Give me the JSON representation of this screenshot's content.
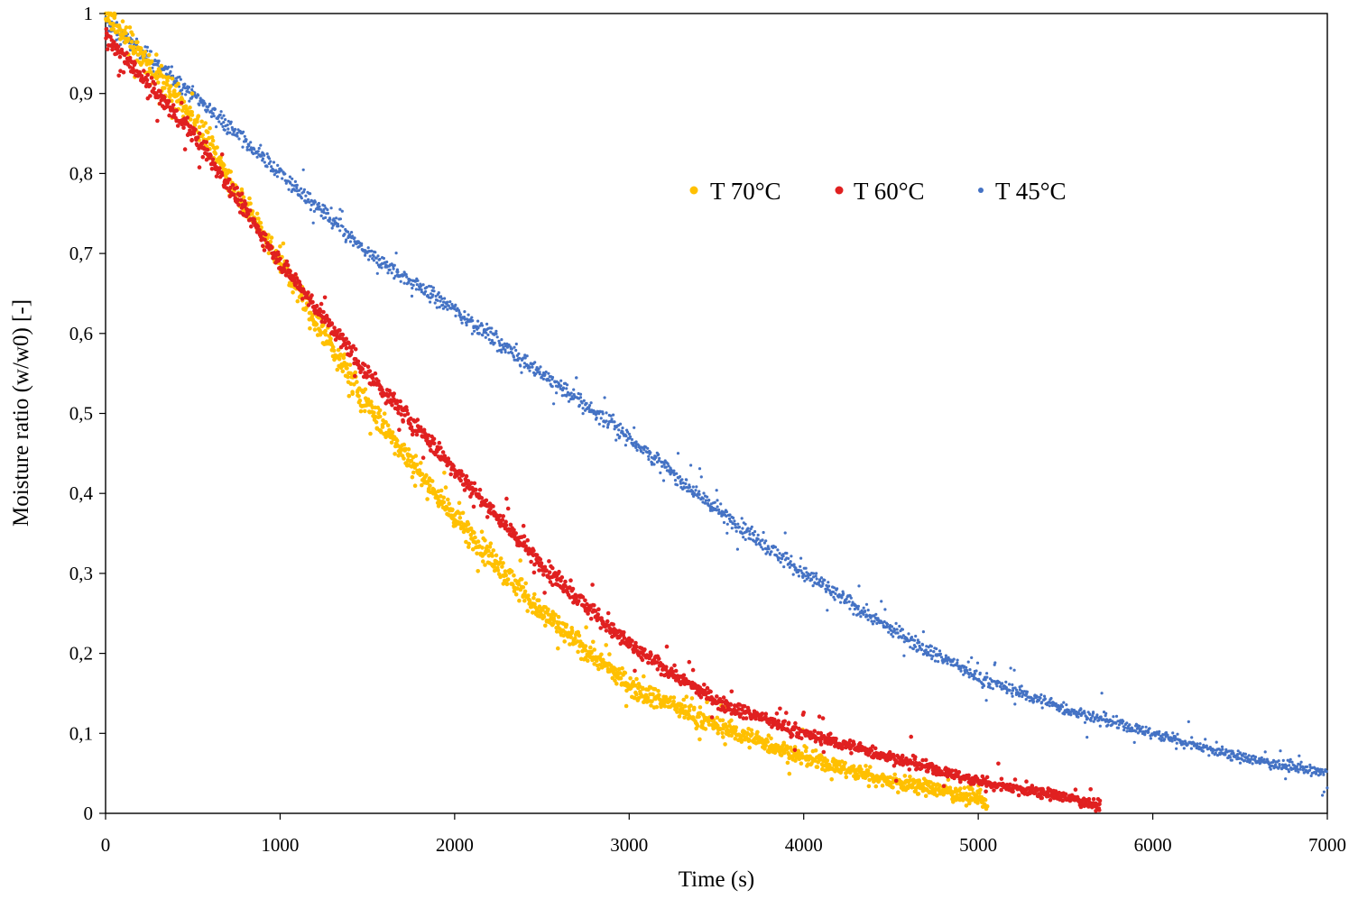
{
  "chart_data": {
    "type": "scatter",
    "title": "",
    "xlabel": "Time (s)",
    "ylabel": "Moisture ratio (w/w0) [-]",
    "xlim": [
      0,
      7000
    ],
    "ylim": [
      0,
      1
    ],
    "xticks": [
      0,
      1000,
      2000,
      3000,
      4000,
      5000,
      6000,
      7000
    ],
    "xtick_labels": [
      "0",
      "1000",
      "2000",
      "3000",
      "4000",
      "5000",
      "6000",
      "7000"
    ],
    "yticks": [
      0,
      0.1,
      0.2,
      0.3,
      0.4,
      0.5,
      0.6,
      0.7,
      0.8,
      0.9,
      1
    ],
    "ytick_labels": [
      "0",
      "0,1",
      "0,2",
      "0,3",
      "0,4",
      "0,5",
      "0,6",
      "0,7",
      "0,8",
      "0,9",
      "1"
    ],
    "grid": false,
    "legend_position": "top-right",
    "series": [
      {
        "name": "T 70°C",
        "color": "#FFC000",
        "x": [
          0,
          500,
          1000,
          1500,
          2000,
          2500,
          3000,
          3500,
          4000,
          4500,
          5000,
          5050
        ],
        "y": [
          1.0,
          0.87,
          0.69,
          0.51,
          0.37,
          0.25,
          0.16,
          0.11,
          0.07,
          0.04,
          0.02,
          0.01
        ]
      },
      {
        "name": "T 60°C",
        "color": "#E02020",
        "x": [
          0,
          500,
          1000,
          1500,
          2000,
          2500,
          3000,
          3500,
          4000,
          4500,
          5000,
          5500,
          5700
        ],
        "y": [
          0.97,
          0.85,
          0.69,
          0.55,
          0.43,
          0.31,
          0.21,
          0.14,
          0.1,
          0.07,
          0.04,
          0.02,
          0.01
        ]
      },
      {
        "name": "T 45°C",
        "color": "#4472C4",
        "x": [
          0,
          500,
          1000,
          1500,
          2000,
          2500,
          3000,
          3500,
          4000,
          4500,
          5000,
          5500,
          6000,
          6500,
          7000
        ],
        "y": [
          0.99,
          0.9,
          0.8,
          0.7,
          0.63,
          0.55,
          0.47,
          0.38,
          0.3,
          0.23,
          0.17,
          0.13,
          0.1,
          0.07,
          0.05
        ]
      }
    ]
  }
}
